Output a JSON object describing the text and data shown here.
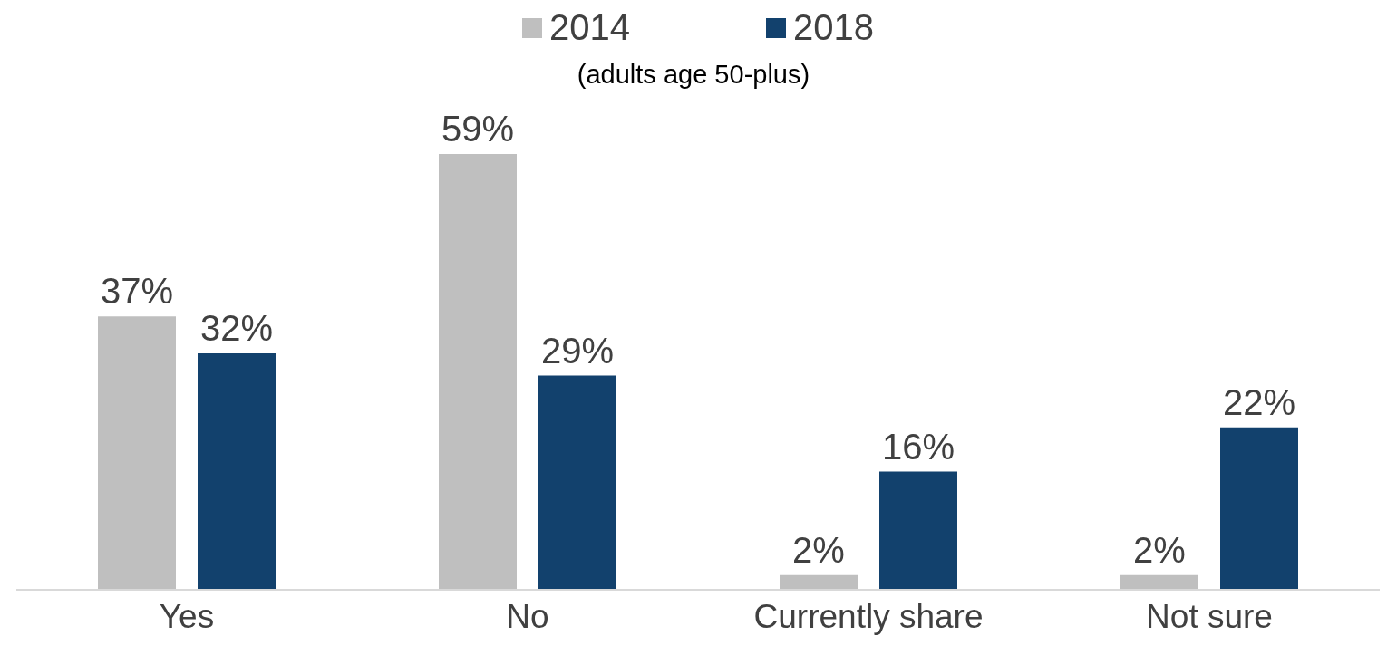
{
  "chart_data": {
    "type": "bar",
    "subtitle": "(adults age 50-plus)",
    "categories": [
      "Yes",
      "No",
      "Currently share",
      "Not sure"
    ],
    "series": [
      {
        "name": "2014",
        "color": "#bfbfbf",
        "values": [
          37,
          59,
          2,
          2
        ],
        "value_labels": [
          "37%",
          "59%",
          "2%",
          "2%"
        ]
      },
      {
        "name": "2018",
        "color": "#12416d",
        "values": [
          32,
          29,
          16,
          22
        ],
        "value_labels": [
          "32%",
          "29%",
          "16%",
          "22%"
        ]
      }
    ],
    "legend": "top",
    "grid": false
  }
}
